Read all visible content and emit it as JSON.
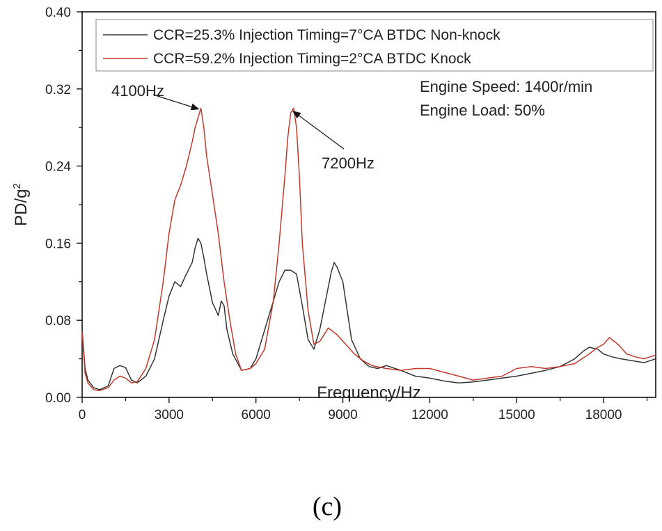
{
  "chart_data": {
    "type": "line",
    "title": "",
    "xlabel": "Frequency/Hz",
    "ylabel_base": "PD/g",
    "ylabel_sup": "2",
    "xlim": [
      0,
      19800
    ],
    "ylim": [
      0,
      0.4
    ],
    "xticks": [
      0,
      3000,
      6000,
      9000,
      12000,
      15000,
      18000
    ],
    "yticks": [
      0.0,
      0.08,
      0.16,
      0.24,
      0.32,
      0.4
    ],
    "xtick_labels": [
      "0",
      "3000",
      "6000",
      "9000",
      "12000",
      "15000",
      "18000"
    ],
    "ytick_labels": [
      "0.00",
      "0.08",
      "0.16",
      "0.24",
      "0.32",
      "0.40"
    ],
    "legend_position": "top-right",
    "series": [
      {
        "name": "CCR=25.3% Injection Timing=7°CA BTDC Non-knock",
        "color": "#333333",
        "x": [
          0,
          100,
          200,
          400,
          600,
          900,
          1100,
          1300,
          1500,
          1700,
          1900,
          2200,
          2500,
          2800,
          3000,
          3200,
          3400,
          3600,
          3800,
          3900,
          4000,
          4100,
          4200,
          4300,
          4500,
          4700,
          4800,
          4900,
          5000,
          5200,
          5500,
          5800,
          6000,
          6300,
          6600,
          6800,
          7000,
          7200,
          7400,
          7600,
          7800,
          8000,
          8200,
          8400,
          8600,
          8700,
          8800,
          9000,
          9300,
          9600,
          9900,
          10200,
          10500,
          11000,
          11500,
          12000,
          12500,
          13000,
          13500,
          14000,
          14500,
          15000,
          15500,
          16000,
          16500,
          17000,
          17300,
          17500,
          17800,
          18000,
          18300,
          18600,
          19000,
          19400,
          19800
        ],
        "y": [
          0.07,
          0.03,
          0.018,
          0.01,
          0.008,
          0.012,
          0.03,
          0.033,
          0.031,
          0.018,
          0.015,
          0.022,
          0.04,
          0.08,
          0.105,
          0.12,
          0.115,
          0.128,
          0.14,
          0.155,
          0.165,
          0.16,
          0.145,
          0.128,
          0.098,
          0.085,
          0.1,
          0.095,
          0.07,
          0.045,
          0.028,
          0.03,
          0.04,
          0.07,
          0.1,
          0.12,
          0.132,
          0.132,
          0.128,
          0.095,
          0.06,
          0.05,
          0.07,
          0.1,
          0.13,
          0.14,
          0.135,
          0.12,
          0.06,
          0.04,
          0.032,
          0.03,
          0.033,
          0.028,
          0.022,
          0.02,
          0.017,
          0.015,
          0.016,
          0.018,
          0.02,
          0.022,
          0.025,
          0.028,
          0.032,
          0.04,
          0.048,
          0.052,
          0.05,
          0.045,
          0.042,
          0.04,
          0.038,
          0.036,
          0.04
        ]
      },
      {
        "name": "CCR=59.2% Injection Timing=2°CA BTDC Knock",
        "color": "#c0392b",
        "x": [
          0,
          100,
          200,
          400,
          600,
          900,
          1100,
          1300,
          1500,
          1700,
          1900,
          2200,
          2500,
          2800,
          3000,
          3200,
          3400,
          3600,
          3800,
          3900,
          4000,
          4100,
          4200,
          4300,
          4500,
          4700,
          4900,
          5100,
          5300,
          5500,
          5800,
          6000,
          6300,
          6600,
          6800,
          7000,
          7100,
          7200,
          7300,
          7400,
          7500,
          7600,
          7800,
          8000,
          8200,
          8500,
          8800,
          9100,
          9400,
          9700,
          10000,
          10500,
          11000,
          11500,
          12000,
          12500,
          13000,
          13500,
          14000,
          14500,
          15000,
          15500,
          16000,
          16500,
          17000,
          17500,
          17800,
          18000,
          18200,
          18500,
          18800,
          19100,
          19400,
          19800
        ],
        "y": [
          0.068,
          0.025,
          0.015,
          0.008,
          0.007,
          0.01,
          0.018,
          0.022,
          0.02,
          0.015,
          0.016,
          0.03,
          0.06,
          0.12,
          0.17,
          0.205,
          0.22,
          0.24,
          0.265,
          0.28,
          0.29,
          0.3,
          0.28,
          0.25,
          0.21,
          0.17,
          0.12,
          0.08,
          0.045,
          0.028,
          0.03,
          0.035,
          0.05,
          0.1,
          0.16,
          0.23,
          0.27,
          0.295,
          0.3,
          0.28,
          0.23,
          0.16,
          0.09,
          0.055,
          0.058,
          0.072,
          0.065,
          0.055,
          0.045,
          0.038,
          0.033,
          0.03,
          0.028,
          0.03,
          0.03,
          0.026,
          0.022,
          0.018,
          0.02,
          0.022,
          0.03,
          0.032,
          0.03,
          0.032,
          0.035,
          0.045,
          0.052,
          0.055,
          0.062,
          0.055,
          0.045,
          0.042,
          0.04,
          0.044
        ]
      }
    ],
    "annotations": [
      {
        "text": "4100Hz",
        "target_x": 4100,
        "target_y": 0.3
      },
      {
        "text": "7200Hz",
        "target_x": 7200,
        "target_y": 0.298
      }
    ],
    "info_lines": [
      "Engine Speed: 1400r/min",
      "Engine Load: 50%"
    ],
    "caption": "(c)"
  }
}
